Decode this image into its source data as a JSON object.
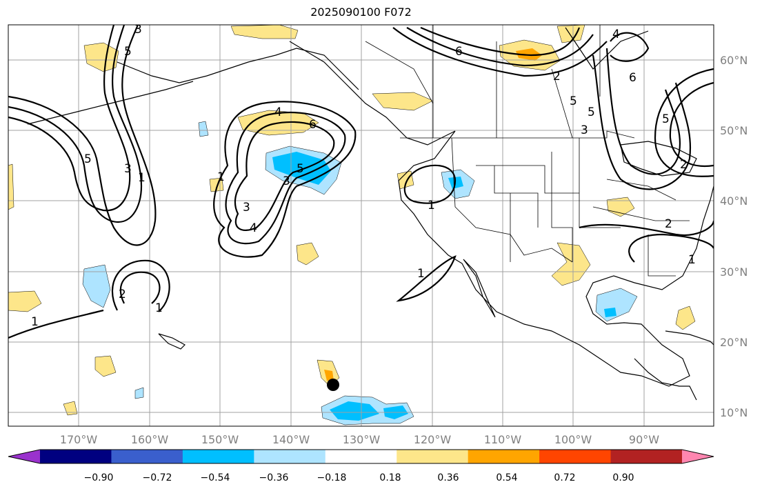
{
  "title": "2025090100 F072",
  "lat_labels": [
    "60°N",
    "50°N",
    "40°N",
    "30°N",
    "20°N",
    "10°N"
  ],
  "lon_labels": [
    "170°W",
    "160°W",
    "150°W",
    "140°W",
    "130°W",
    "120°W",
    "110°W",
    "100°W",
    "90°W"
  ],
  "colorbar": {
    "ticks": [
      "−0.90",
      "−0.72",
      "−0.54",
      "−0.36",
      "−0.18",
      "0.18",
      "0.36",
      "0.54",
      "0.72",
      "0.90"
    ],
    "colors": [
      "#9a32cd",
      "#000080",
      "#3a5fcd",
      "#00bfff",
      "#aee4ff",
      "#ffffff",
      "#fde68a",
      "#ffa500",
      "#ff4500",
      "#b22222",
      "#ff86b0"
    ]
  },
  "contour_labels": [
    "1",
    "2",
    "3",
    "4",
    "5",
    "6"
  ],
  "colors": {
    "positive_light": "#fde68a",
    "positive_mid": "#ffa500",
    "negative_light": "#aee4ff",
    "negative_mid": "#00bfff"
  }
}
